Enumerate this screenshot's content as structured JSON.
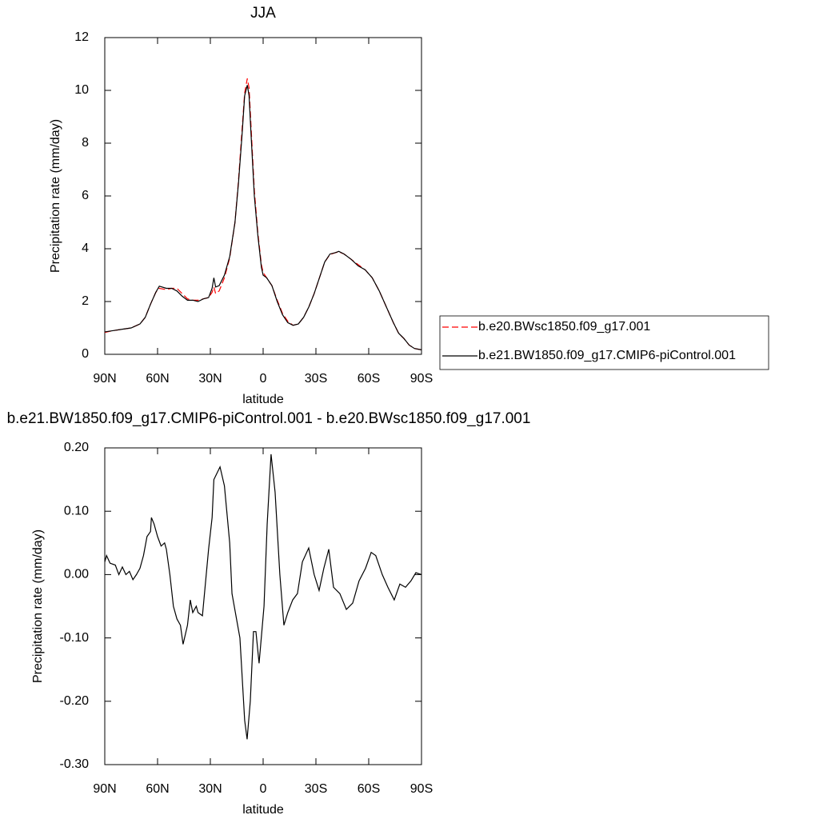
{
  "chart_data": [
    {
      "type": "line",
      "title": "JJA",
      "x_label": "latitude",
      "y_label": "Precipitation rate (mm/day)",
      "x": [
        90,
        85,
        80,
        75,
        70,
        67,
        64,
        61,
        59,
        55,
        52,
        49,
        46,
        43,
        40,
        37,
        34,
        31,
        29,
        28,
        27,
        25,
        22,
        19,
        16,
        14,
        12,
        10.5,
        9,
        8,
        7,
        5,
        3,
        1,
        0,
        -2,
        -5,
        -8,
        -11,
        -14,
        -17,
        -20,
        -23,
        -26,
        -29,
        -32,
        -35,
        -38,
        -41,
        -43,
        -46,
        -50,
        -54,
        -58,
        -62,
        -66,
        -70,
        -74,
        -77,
        -80,
        -83,
        -86,
        -90
      ],
      "series": [
        {
          "name": "b.e20.BWsc1850.f09_g17.001",
          "color": "#ff0000",
          "dash": true,
          "values": [
            0.83,
            0.9,
            0.95,
            1.0,
            1.15,
            1.4,
            1.9,
            2.35,
            2.5,
            2.45,
            2.5,
            2.5,
            2.3,
            2.1,
            2.05,
            2.05,
            2.1,
            2.15,
            2.35,
            2.55,
            2.3,
            2.4,
            2.9,
            3.65,
            5.0,
            6.6,
            8.5,
            9.9,
            10.45,
            10.1,
            8.8,
            6.2,
            4.6,
            3.4,
            3.1,
            2.9,
            2.6,
            2.05,
            1.55,
            1.25,
            1.1,
            1.15,
            1.4,
            1.8,
            2.3,
            2.9,
            3.5,
            3.78,
            3.85,
            3.88,
            3.8,
            3.6,
            3.4,
            3.2,
            2.9,
            2.4,
            1.8,
            1.2,
            0.8,
            0.6,
            0.35,
            0.22,
            0.17
          ]
        },
        {
          "name": "b.e21.BW1850.f09_g17.CMIP6-piControl.001",
          "color": "#000000",
          "dash": false,
          "values": [
            0.85,
            0.9,
            0.95,
            1.0,
            1.15,
            1.4,
            1.9,
            2.35,
            2.58,
            2.5,
            2.5,
            2.4,
            2.2,
            2.05,
            2.05,
            2.0,
            2.1,
            2.15,
            2.5,
            2.9,
            2.55,
            2.6,
            3.0,
            3.7,
            5.0,
            6.5,
            8.3,
            9.8,
            10.2,
            9.8,
            8.5,
            6.0,
            4.5,
            3.3,
            3.0,
            2.9,
            2.6,
            2.0,
            1.5,
            1.2,
            1.1,
            1.15,
            1.4,
            1.8,
            2.3,
            2.9,
            3.5,
            3.8,
            3.85,
            3.9,
            3.8,
            3.6,
            3.35,
            3.2,
            2.9,
            2.4,
            1.8,
            1.2,
            0.8,
            0.6,
            0.35,
            0.22,
            0.17
          ]
        }
      ],
      "xlim": [
        90,
        -90
      ],
      "xticks": [
        {
          "value": 90,
          "label": "90N"
        },
        {
          "value": 60,
          "label": "60N"
        },
        {
          "value": 30,
          "label": "30N"
        },
        0,
        {
          "value": -30,
          "label": "30S"
        },
        {
          "value": -60,
          "label": "60S"
        },
        {
          "value": -90,
          "label": "90S"
        }
      ],
      "ylim": [
        0,
        12
      ],
      "yticks": [
        0,
        2,
        4,
        6,
        8,
        10,
        12
      ],
      "legend": "outside right"
    },
    {
      "type": "line",
      "title": "b.e21.BW1850.f09_g17.CMIP6-piControl.001 - b.e20.BWsc1850.f09_g17.001",
      "x_label": "latitude",
      "y_label": "Precipitation rate (mm/day)",
      "x": [
        90,
        89,
        87,
        84,
        82,
        80,
        78,
        76,
        74,
        72,
        70,
        68,
        66,
        64,
        63.5,
        62,
        60,
        58,
        56,
        55,
        53,
        51,
        49,
        47,
        45.5,
        43,
        41.4,
        40,
        38,
        37,
        34.5,
        33,
        31,
        29,
        28,
        24.5,
        22,
        19,
        17.7,
        13.2,
        10.5,
        9.1,
        7.3,
        5.5,
        4.1,
        2.3,
        -0.5,
        -2.3,
        -4.5,
        -6.8,
        -9.5,
        -11.8,
        -14,
        -16.8,
        -19.5,
        -22.3,
        -25.9,
        -29,
        -31.8,
        -34.5,
        -37.3,
        -40,
        -43.6,
        -47.3,
        -50.9,
        -54.5,
        -58.2,
        -61.4,
        -64,
        -67.7,
        -70.9,
        -74.5,
        -77.7,
        -80.9,
        -84,
        -86.8,
        -90
      ],
      "color": "#000000",
      "values": [
        0.02,
        0.03,
        0.018,
        0.015,
        0.0,
        0.012,
        0.0,
        0.005,
        -0.008,
        0.0,
        0.01,
        0.03,
        0.06,
        0.068,
        0.09,
        0.08,
        0.06,
        0.045,
        0.05,
        0.04,
        0.0,
        -0.05,
        -0.07,
        -0.08,
        -0.11,
        -0.08,
        -0.04,
        -0.06,
        -0.05,
        -0.06,
        -0.065,
        -0.02,
        0.04,
        0.09,
        0.15,
        0.17,
        0.14,
        0.05,
        -0.03,
        -0.1,
        -0.23,
        -0.26,
        -0.2,
        -0.09,
        -0.09,
        -0.14,
        -0.05,
        0.08,
        0.19,
        0.13,
        0.0,
        -0.08,
        -0.06,
        -0.04,
        -0.03,
        0.02,
        0.042,
        0.0,
        -0.025,
        0.01,
        0.04,
        -0.02,
        -0.03,
        -0.055,
        -0.045,
        -0.01,
        0.01,
        0.035,
        0.03,
        0.0,
        -0.02,
        -0.04,
        -0.015,
        -0.02,
        -0.01,
        0.003,
        0.0
      ],
      "xlim": [
        90,
        -90
      ],
      "xticks": [
        {
          "value": 90,
          "label": "90N"
        },
        {
          "value": 60,
          "label": "60N"
        },
        {
          "value": 30,
          "label": "30N"
        },
        0,
        {
          "value": -30,
          "label": "30S"
        },
        {
          "value": -60,
          "label": "60S"
        },
        {
          "value": -90,
          "label": "90S"
        }
      ],
      "ylim": [
        -0.3,
        0.2
      ],
      "yticks": [
        {
          "value": -0.3,
          "label": "-0.30"
        },
        {
          "value": -0.2,
          "label": "-0.20"
        },
        {
          "value": -0.1,
          "label": "-0.10"
        },
        {
          "value": 0,
          "label": "0.00"
        },
        {
          "value": 0.1,
          "label": "0.10"
        },
        {
          "value": 0.2,
          "label": "0.20"
        }
      ]
    }
  ]
}
